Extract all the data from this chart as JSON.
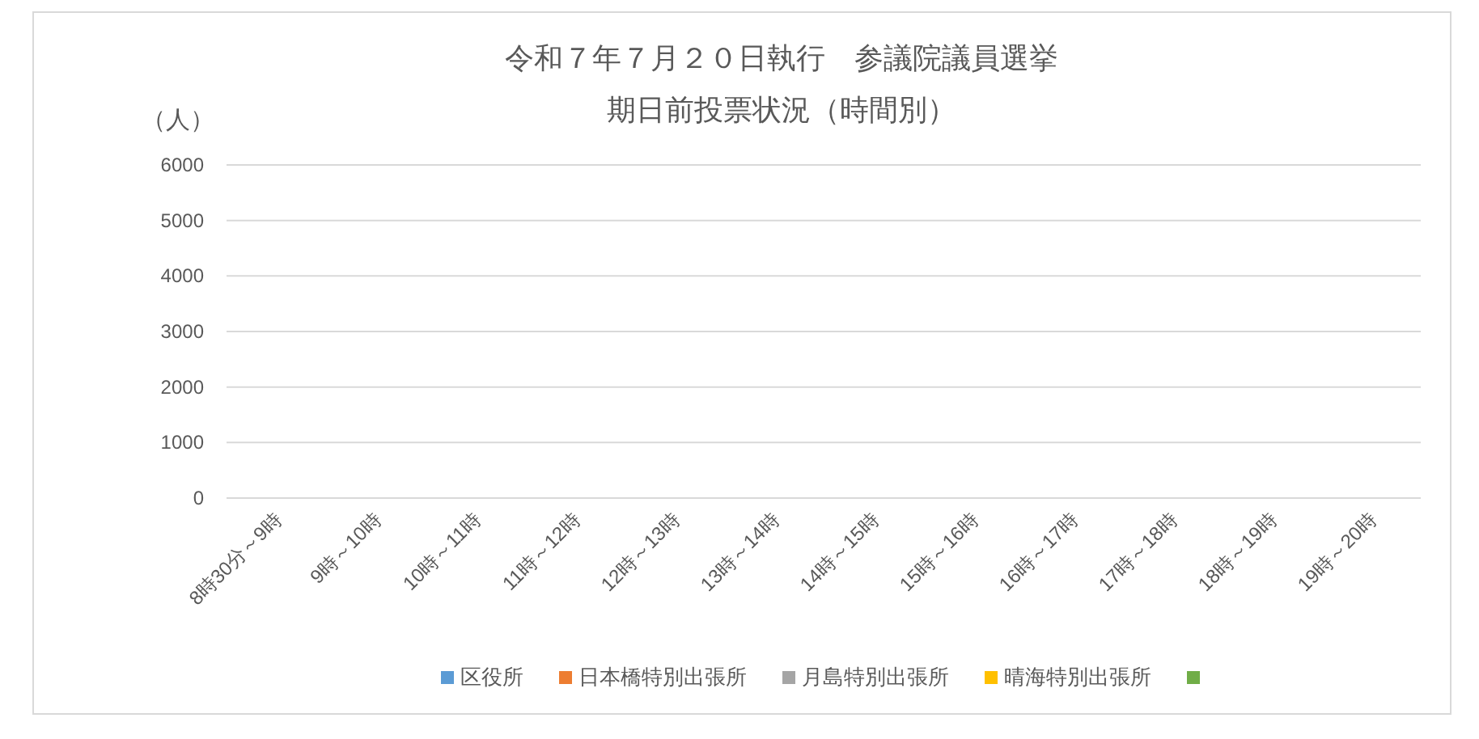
{
  "chart_data": {
    "type": "bar",
    "title": "令和７年７月２０日執行　参議院議員選挙",
    "subtitle": "期日前投票状況（時間別）",
    "ylabel": "（人）",
    "categories": [
      "8時30分～9時",
      "9時～10時",
      "10時～11時",
      "11時～12時",
      "12時～13時",
      "13時～14時",
      "14時～15時",
      "15時～16時",
      "16時～17時",
      "17時～18時",
      "18時～19時",
      "19時～20時"
    ],
    "series": [
      {
        "name": "区役所",
        "color": "#5b9bd5",
        "values": [
          null,
          null,
          null,
          null,
          null,
          null,
          null,
          null,
          null,
          null,
          null,
          null
        ]
      },
      {
        "name": "日本橋特別出張所",
        "color": "#ed7d31",
        "values": [
          null,
          null,
          null,
          null,
          null,
          null,
          null,
          null,
          null,
          null,
          null,
          null
        ]
      },
      {
        "name": "月島特別出張所",
        "color": "#a5a5a5",
        "values": [
          null,
          null,
          null,
          null,
          null,
          null,
          null,
          null,
          null,
          null,
          null,
          null
        ]
      },
      {
        "name": "晴海特別出張所",
        "color": "#ffc000",
        "values": [
          null,
          null,
          null,
          null,
          null,
          null,
          null,
          null,
          null,
          null,
          null,
          null
        ]
      },
      {
        "color": "#70ad47",
        "values": [
          null,
          null,
          null,
          null,
          null,
          null,
          null,
          null,
          null,
          null,
          null,
          null
        ]
      }
    ],
    "ylim": [
      0,
      6000
    ],
    "yticks": [
      0,
      1000,
      2000,
      3000,
      4000,
      5000,
      6000
    ],
    "grid": "y",
    "legend": "bottom"
  }
}
